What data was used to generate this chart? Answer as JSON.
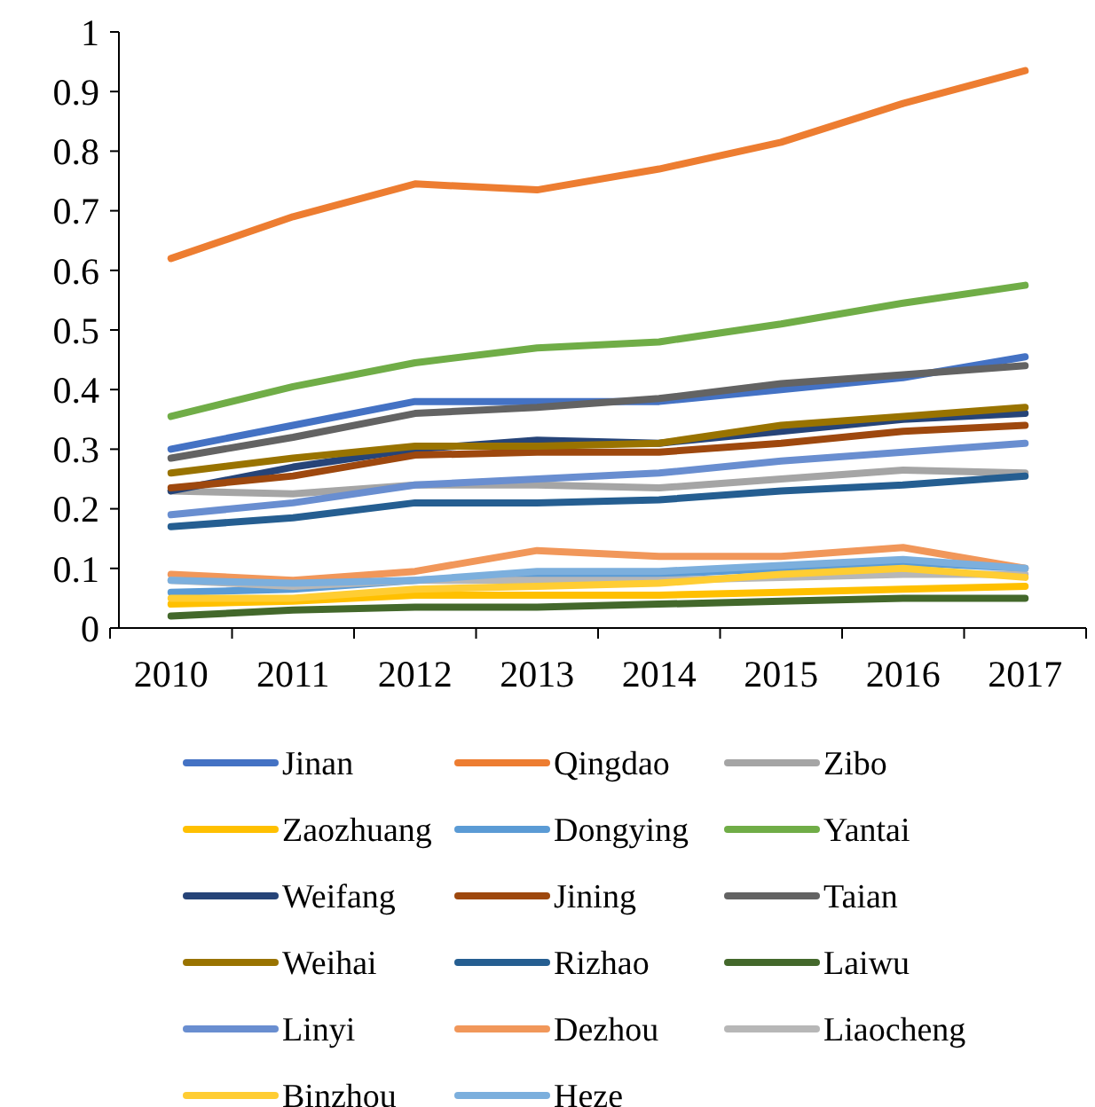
{
  "chart_data": {
    "type": "line",
    "categories": [
      "2010",
      "2011",
      "2012",
      "2013",
      "2014",
      "2015",
      "2016",
      "2017"
    ],
    "ylim": [
      0,
      1
    ],
    "yticks": [
      0,
      0.1,
      0.2,
      0.3,
      0.4,
      0.5,
      0.6,
      0.7,
      0.8,
      0.9,
      1
    ],
    "grid": false,
    "legend": "bottom",
    "marker": "none",
    "line_style": "solid",
    "series": [
      {
        "name": "Jinan",
        "color": "#4472c4",
        "values": [
          0.3,
          0.34,
          0.38,
          0.38,
          0.38,
          0.4,
          0.42,
          0.455
        ]
      },
      {
        "name": "Qingdao",
        "color": "#ed7d31",
        "values": [
          0.62,
          0.69,
          0.745,
          0.735,
          0.77,
          0.815,
          0.88,
          0.935
        ]
      },
      {
        "name": "Zibo",
        "color": "#a5a5a5",
        "values": [
          0.23,
          0.225,
          0.24,
          0.24,
          0.235,
          0.25,
          0.265,
          0.26
        ]
      },
      {
        "name": "Zaozhuang",
        "color": "#ffc000",
        "values": [
          0.04,
          0.045,
          0.055,
          0.055,
          0.055,
          0.06,
          0.065,
          0.07
        ]
      },
      {
        "name": "Dongying",
        "color": "#5b9bd5",
        "values": [
          0.06,
          0.065,
          0.08,
          0.09,
          0.09,
          0.1,
          0.11,
          0.1
        ]
      },
      {
        "name": "Yantai",
        "color": "#70ad47",
        "values": [
          0.355,
          0.405,
          0.445,
          0.47,
          0.48,
          0.51,
          0.545,
          0.575
        ]
      },
      {
        "name": "Weifang",
        "color": "#264478",
        "values": [
          0.23,
          0.27,
          0.3,
          0.315,
          0.31,
          0.33,
          0.35,
          0.36
        ]
      },
      {
        "name": "Jining",
        "color": "#9e480e",
        "values": [
          0.235,
          0.255,
          0.29,
          0.295,
          0.295,
          0.31,
          0.33,
          0.34
        ]
      },
      {
        "name": "Taian",
        "color": "#636363",
        "values": [
          0.285,
          0.32,
          0.36,
          0.37,
          0.385,
          0.41,
          0.425,
          0.44
        ]
      },
      {
        "name": "Weihai",
        "color": "#997300",
        "values": [
          0.26,
          0.285,
          0.305,
          0.305,
          0.31,
          0.34,
          0.355,
          0.37
        ]
      },
      {
        "name": "Rizhao",
        "color": "#255e91",
        "values": [
          0.17,
          0.185,
          0.21,
          0.21,
          0.215,
          0.23,
          0.24,
          0.255
        ]
      },
      {
        "name": "Laiwu",
        "color": "#43682b",
        "values": [
          0.02,
          0.03,
          0.035,
          0.035,
          0.04,
          0.045,
          0.05,
          0.05
        ]
      },
      {
        "name": "Linyi",
        "color": "#698ed0",
        "values": [
          0.19,
          0.21,
          0.24,
          0.25,
          0.26,
          0.28,
          0.295,
          0.31
        ]
      },
      {
        "name": "Dezhou",
        "color": "#f1975a",
        "values": [
          0.09,
          0.08,
          0.095,
          0.13,
          0.12,
          0.12,
          0.135,
          0.1
        ]
      },
      {
        "name": "Liaocheng",
        "color": "#b7b7b7",
        "values": [
          0.08,
          0.07,
          0.08,
          0.08,
          0.08,
          0.085,
          0.09,
          0.09
        ]
      },
      {
        "name": "Binzhou",
        "color": "#ffcd33",
        "values": [
          0.05,
          0.05,
          0.065,
          0.07,
          0.075,
          0.09,
          0.1,
          0.085
        ]
      },
      {
        "name": "Heze",
        "color": "#7cafdd",
        "values": [
          0.08,
          0.075,
          0.08,
          0.095,
          0.095,
          0.105,
          0.115,
          0.1
        ]
      }
    ]
  }
}
